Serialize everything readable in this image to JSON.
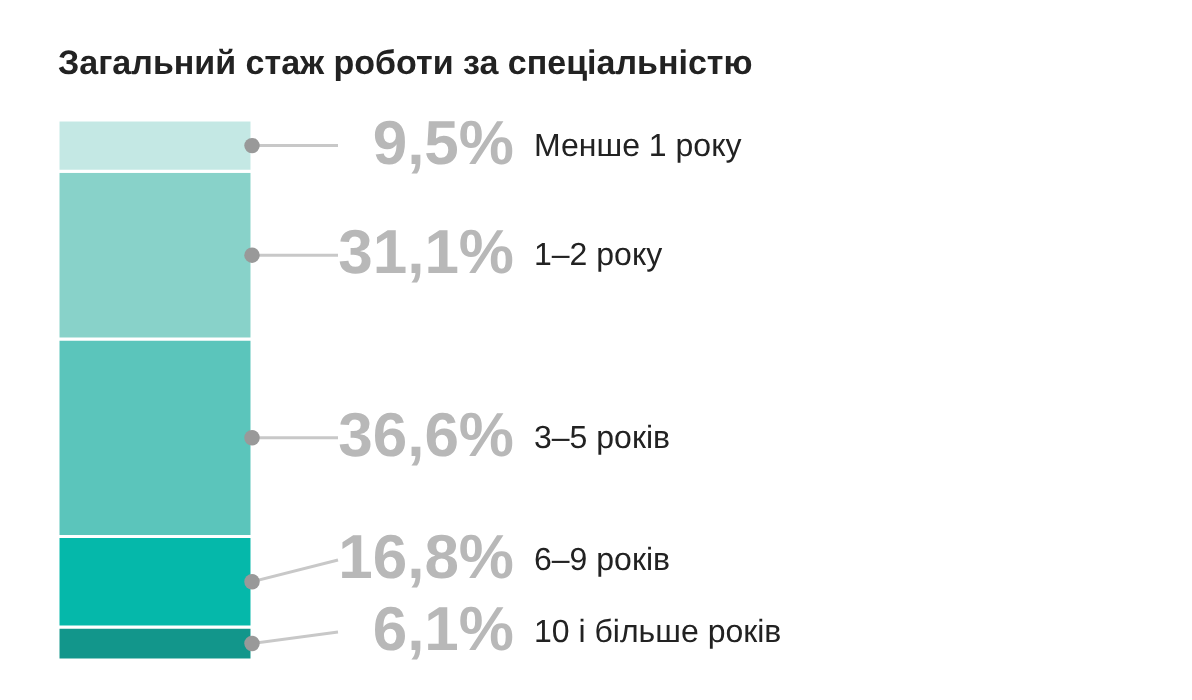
{
  "chart_data": {
    "type": "bar",
    "stacked": true,
    "title": "Загальний стаж роботи за спеціальністю",
    "categories": [
      null
    ],
    "tick_labels": false,
    "legend": false,
    "series": [
      {
        "name": "10 і більше років",
        "color": "#12968b",
        "values": [
          6.1
        ],
        "value_labels": [
          "6,1%"
        ]
      },
      {
        "name": "6–9 років",
        "color": "#05b8aa",
        "values": [
          16.8
        ],
        "value_labels": [
          "16,8%"
        ]
      },
      {
        "name": "3–5 років",
        "color": "#5bc5bb",
        "values": [
          36.6
        ],
        "value_labels": [
          "36,6%"
        ]
      },
      {
        "name": "1–2 року",
        "color": "#88d2c9",
        "values": [
          31.1
        ],
        "value_labels": [
          "31,1%"
        ]
      },
      {
        "name": "Менше 1 року",
        "color": "#c4e8e4",
        "values": [
          9.5
        ],
        "value_labels": [
          "9,5%"
        ]
      }
    ]
  }
}
